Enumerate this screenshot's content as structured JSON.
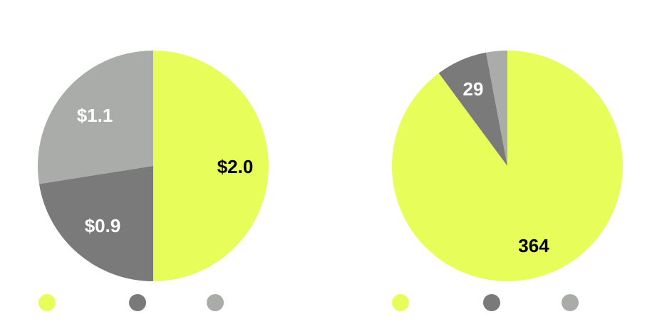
{
  "palette": {
    "lime": "#e6fd5a",
    "dark_gray": "#7a7a7a",
    "light_gray": "#a9aca8",
    "label_dark": "#000000",
    "label_light": "#ffffff"
  },
  "chart_data": [
    {
      "type": "pie",
      "title": "",
      "start": "12 o'clock",
      "direction": "clockwise",
      "slices": [
        {
          "value": 2.0,
          "label": "$2.0",
          "color": "#e6fd5a",
          "label_color": "#000000"
        },
        {
          "value": 0.9,
          "label": "$0.9",
          "color": "#7a7a7a",
          "label_color": "#ffffff"
        },
        {
          "value": 1.1,
          "label": "$1.1",
          "color": "#a9aca8",
          "label_color": "#ffffff"
        }
      ],
      "legend": {
        "placement": "bottom",
        "markers": [
          "#e6fd5a",
          "#7a7a7a",
          "#a9aca8"
        ]
      }
    },
    {
      "type": "pie",
      "title": "",
      "start": "12 o'clock",
      "direction": "clockwise",
      "slices": [
        {
          "value": 364,
          "label": "364",
          "color": "#e6fd5a",
          "label_color": "#000000"
        },
        {
          "value": 29,
          "label": "29",
          "color": "#7a7a7a",
          "label_color": "#ffffff"
        },
        {
          "value": 12,
          "label": "",
          "color": "#a9aca8",
          "label_color": "#ffffff"
        }
      ],
      "legend": {
        "placement": "bottom",
        "markers": [
          "#e6fd5a",
          "#7a7a7a",
          "#a9aca8"
        ]
      }
    }
  ]
}
